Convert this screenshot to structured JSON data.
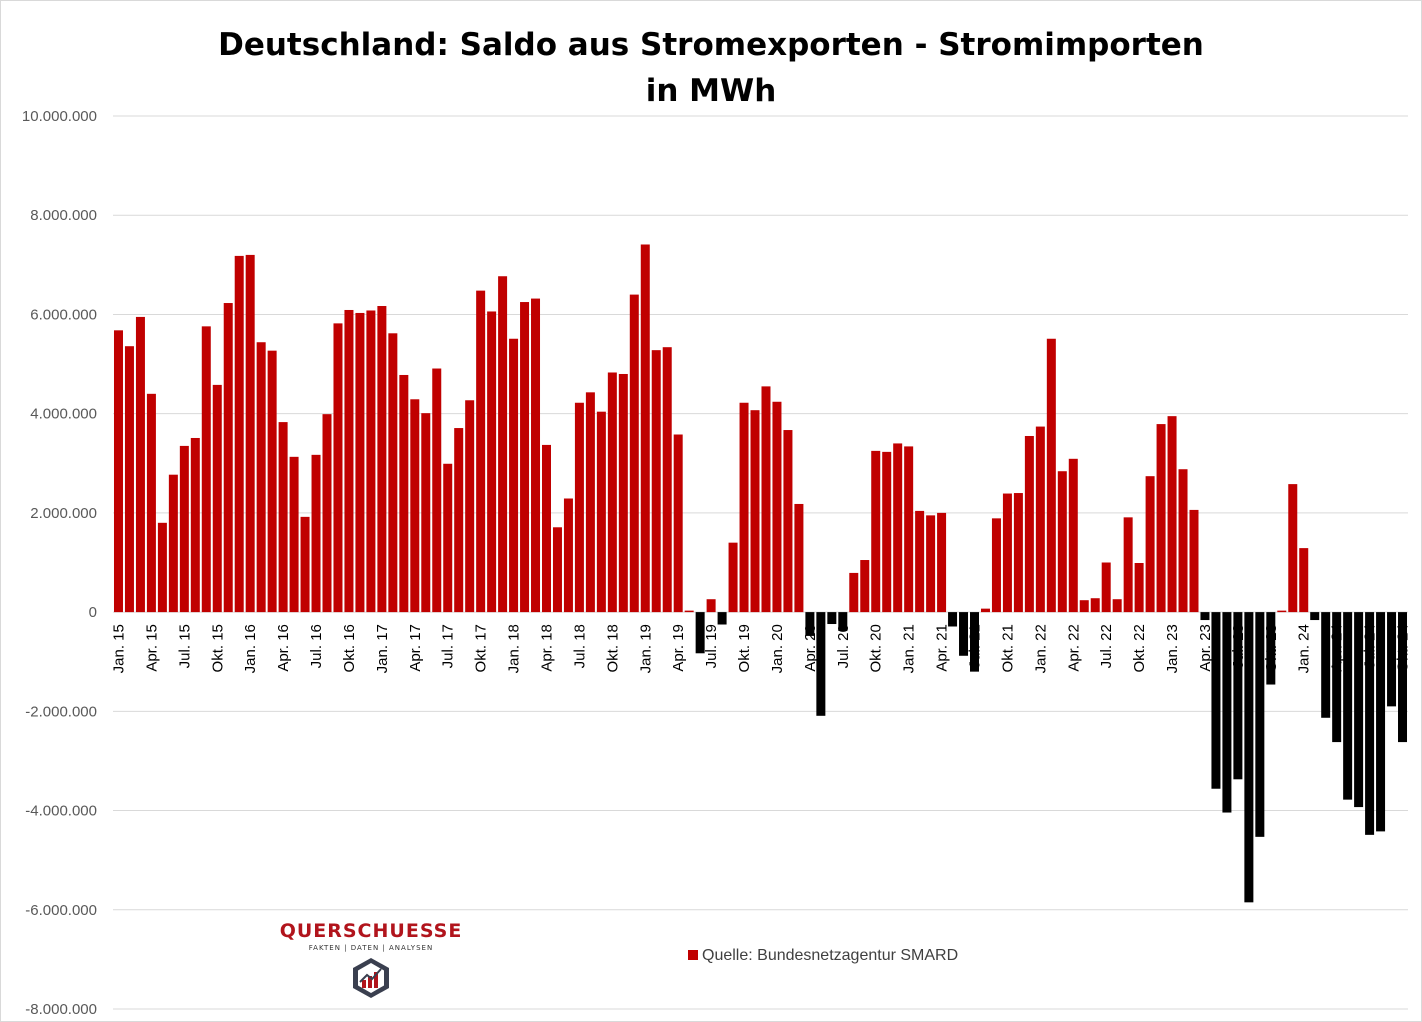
{
  "chart_data": {
    "type": "bar",
    "title": "Deutschland: Saldo aus Stromexporten - Stromimporten",
    "subtitle": "in MWh",
    "xlabel": "",
    "ylabel": "",
    "ylim": [
      -8000000,
      10000000
    ],
    "yticks": [
      10000000,
      8000000,
      6000000,
      4000000,
      2000000,
      0,
      -2000000,
      -4000000,
      -6000000,
      -8000000
    ],
    "ytick_labels": [
      "10.000.000",
      "8.000.000",
      "6.000.000",
      "4.000.000",
      "2.000.000",
      "0",
      "-2.000.000",
      "-4.000.000",
      "-6.000.000",
      "-8.000.000"
    ],
    "grid": true,
    "legend_position": "bottom-center",
    "colors": {
      "positive": "#c00000",
      "negative": "#000000",
      "grid": "#d9d9d9"
    },
    "categories": [
      "Jan. 15",
      "Feb. 15",
      "Mrz. 15",
      "Apr. 15",
      "Mai. 15",
      "Jun. 15",
      "Jul. 15",
      "Aug. 15",
      "Sep. 15",
      "Okt. 15",
      "Nov. 15",
      "Dez. 15",
      "Jan. 16",
      "Feb. 16",
      "Mrz. 16",
      "Apr. 16",
      "Mai. 16",
      "Jun. 16",
      "Jul. 16",
      "Aug. 16",
      "Sep. 16",
      "Okt. 16",
      "Nov. 16",
      "Dez. 16",
      "Jan. 17",
      "Feb. 17",
      "Mrz. 17",
      "Apr. 17",
      "Mai. 17",
      "Jun. 17",
      "Jul. 17",
      "Aug. 17",
      "Sep. 17",
      "Okt. 17",
      "Nov. 17",
      "Dez. 17",
      "Jan. 18",
      "Feb. 18",
      "Mrz. 18",
      "Apr. 18",
      "Mai. 18",
      "Jun. 18",
      "Jul. 18",
      "Aug. 18",
      "Sep. 18",
      "Okt. 18",
      "Nov. 18",
      "Dez. 18",
      "Jan. 19",
      "Feb. 19",
      "Mrz. 19",
      "Apr. 19",
      "Mai. 19",
      "Jun. 19",
      "Jul. 19",
      "Aug. 19",
      "Sep. 19",
      "Okt. 19",
      "Nov. 19",
      "Dez. 19",
      "Jan. 20",
      "Feb. 20",
      "Mrz. 20",
      "Apr. 20",
      "Mai. 20",
      "Jun. 20",
      "Jul. 20",
      "Aug. 20",
      "Sep. 20",
      "Okt. 20",
      "Nov. 20",
      "Dez. 20",
      "Jan. 21",
      "Feb. 21",
      "Mrz. 21",
      "Apr. 21",
      "Mai. 21",
      "Jun. 21",
      "Jul. 21",
      "Aug. 21",
      "Sep. 21",
      "Okt. 21",
      "Nov. 21",
      "Dez. 21",
      "Jan. 22",
      "Feb. 22",
      "Mrz. 22",
      "Apr. 22",
      "Mai. 22",
      "Jun. 22",
      "Jul. 22",
      "Aug. 22",
      "Sep. 22",
      "Okt. 22",
      "Nov. 22",
      "Dez. 22",
      "Jan. 23",
      "Feb. 23",
      "Mrz. 23",
      "Apr. 23",
      "Mai. 23",
      "Jun. 23",
      "Jul. 23",
      "Aug. 23",
      "Sep. 23",
      "Okt. 23",
      "Nov. 23",
      "Dez. 23",
      "Jan. 24",
      "Feb. 24",
      "Mrz. 24",
      "Apr. 24",
      "Mai. 24",
      "Jun. 24",
      "Jul. 24",
      "Aug. 24",
      "Sep. 24",
      "Okt. 24"
    ],
    "tick_every": 3,
    "series": [
      {
        "name": "Quelle: Bundesnetzagentur SMARD",
        "values": [
          5680000,
          5360000,
          5950000,
          4400000,
          1800000,
          2770000,
          3350000,
          3510000,
          5760000,
          4580000,
          6230000,
          7180000,
          7200000,
          5440000,
          5270000,
          3830000,
          3130000,
          1920000,
          3170000,
          3990000,
          5820000,
          6090000,
          6030000,
          6080000,
          6170000,
          5620000,
          4780000,
          4290000,
          4010000,
          4910000,
          2990000,
          3710000,
          4270000,
          6480000,
          6060000,
          6770000,
          5510000,
          6250000,
          6320000,
          3370000,
          1710000,
          2290000,
          4220000,
          4430000,
          4040000,
          4830000,
          4800000,
          6400000,
          7410000,
          5280000,
          5340000,
          3580000,
          30000,
          -830000,
          260000,
          -250000,
          1400000,
          4220000,
          4070000,
          4550000,
          4240000,
          3670000,
          2180000,
          -480000,
          -2090000,
          -240000,
          -380000,
          790000,
          1050000,
          3250000,
          3230000,
          3400000,
          3340000,
          2040000,
          1950000,
          2000000,
          -290000,
          -880000,
          -1200000,
          70000,
          1890000,
          2390000,
          2400000,
          3550000,
          3740000,
          5510000,
          2840000,
          3090000,
          240000,
          280000,
          1000000,
          260000,
          1910000,
          990000,
          2740000,
          3790000,
          3950000,
          2880000,
          2060000,
          -160000,
          -3560000,
          -4040000,
          -3370000,
          -5850000,
          -4530000,
          -1460000,
          30000,
          2580000,
          1290000,
          -160000,
          -2130000,
          -2620000,
          -3780000,
          -3930000,
          -4490000,
          -4420000,
          -1900000,
          -2620000
        ]
      }
    ]
  },
  "legend": {
    "label": "Quelle: Bundesnetzagentur SMARD"
  },
  "logo": {
    "name": "QUERSCHUESSE",
    "tagline": "FAKTEN | DATEN | ANALYSEN"
  }
}
